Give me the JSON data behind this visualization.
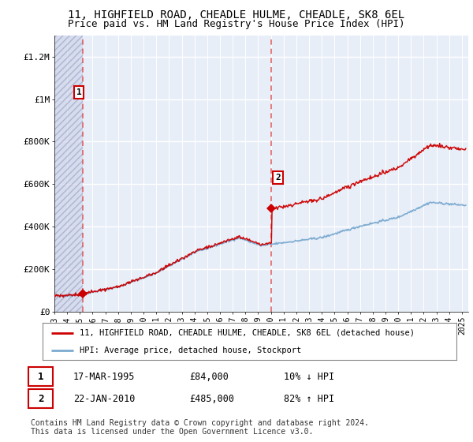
{
  "title": "11, HIGHFIELD ROAD, CHEADLE HULME, CHEADLE, SK8 6EL",
  "subtitle": "Price paid vs. HM Land Registry's House Price Index (HPI)",
  "title_fontsize": 10,
  "subtitle_fontsize": 9,
  "ylim": [
    0,
    1300000
  ],
  "yticks": [
    0,
    200000,
    400000,
    600000,
    800000,
    1000000,
    1200000
  ],
  "ytick_labels": [
    "£0",
    "£200K",
    "£400K",
    "£600K",
    "£800K",
    "£1M",
    "£1.2M"
  ],
  "xmin": 1993.0,
  "xmax": 2025.5,
  "background_color": "#ffffff",
  "plot_bg_color": "#e8eef8",
  "grid_color": "#ffffff",
  "sale1_x": 1995.21,
  "sale1_y": 84000,
  "sale2_x": 2010.05,
  "sale2_y": 485000,
  "sale_marker_color": "#cc0000",
  "sale_vline_color": "#dd5555",
  "red_line_color": "#cc0000",
  "blue_line_color": "#7aaad0",
  "legend_label1": "11, HIGHFIELD ROAD, CHEADLE HULME, CHEADLE, SK8 6EL (detached house)",
  "legend_label2": "HPI: Average price, detached house, Stockport",
  "annot1_date": "17-MAR-1995",
  "annot1_price": "£84,000",
  "annot1_hpi": "10% ↓ HPI",
  "annot2_date": "22-JAN-2010",
  "annot2_price": "£485,000",
  "annot2_hpi": "82% ↑ HPI",
  "footnote": "Contains HM Land Registry data © Crown copyright and database right 2024.\nThis data is licensed under the Open Government Licence v3.0.",
  "footnote_fontsize": 7
}
